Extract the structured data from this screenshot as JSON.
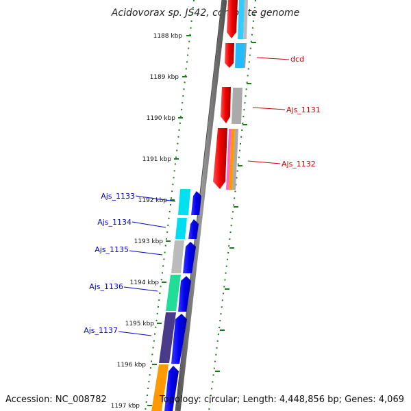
{
  "title": "Acidovorax sp. JS42, complete genome",
  "footer": {
    "accession": "Accession: NC_008782",
    "summary": "Topology: circular; Length: 4,448,856 bp; Genes: 4,069"
  },
  "colors": {
    "forward": "#dd0000",
    "reverse": "#0000ee",
    "backbone": "#777777",
    "tick_dots": "#1a7a1a",
    "label_red": "#cc0000",
    "label_blue": "#0000cc"
  },
  "scale_labels": [
    "1188 kbp",
    "1189 kbp",
    "1190 kbp",
    "1191 kbp",
    "1192 kbp",
    "1193 kbp",
    "1194 kbp",
    "1195 kbp",
    "1196 kbp",
    "1197 kbp"
  ],
  "forward_genes": [
    {
      "label": "dcd"
    },
    {
      "label": "Ajs_1131"
    },
    {
      "label": "Ajs_1132"
    }
  ],
  "reverse_genes": [
    {
      "label": "Ajs_1133"
    },
    {
      "label": "Ajs_1134"
    },
    {
      "label": "Ajs_1135"
    },
    {
      "label": "Ajs_1136"
    },
    {
      "label": "Ajs_1137"
    }
  ]
}
